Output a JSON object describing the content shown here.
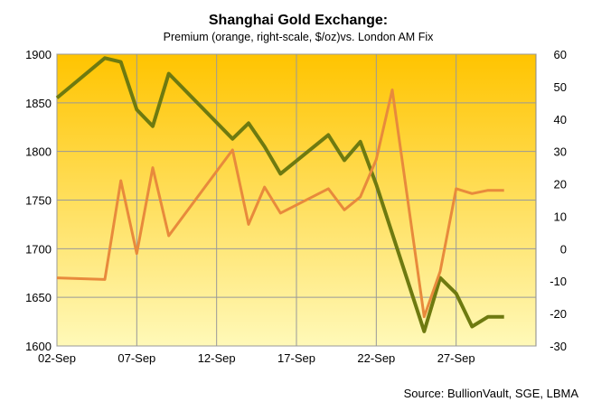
{
  "chart_data": {
    "type": "line",
    "title": "Shanghai Gold Exchange:",
    "subtitle": "Premium (orange, right-scale, $/oz)vs. London AM Fix",
    "source": "Source:  BullionVault, SGE, LBMA",
    "x_ticks": [
      "02-Sep",
      "07-Sep",
      "12-Sep",
      "17-Sep",
      "22-Sep",
      "27-Sep"
    ],
    "x_tick_days": [
      2,
      7,
      12,
      17,
      22,
      27
    ],
    "x_range_days": [
      2,
      32
    ],
    "y_left": {
      "range": [
        1600,
        1900
      ],
      "ticks": [
        1600,
        1650,
        1700,
        1750,
        1800,
        1850,
        1900
      ]
    },
    "y_right": {
      "range": [
        -30,
        60
      ],
      "ticks": [
        -30,
        -20,
        -10,
        0,
        10,
        20,
        30,
        40,
        50,
        60
      ]
    },
    "grid": true,
    "colors": {
      "gold_line": "#6e7a10",
      "premium_line": "#e88a3c",
      "plot_top": "#ffc400",
      "plot_bottom": "#fff9b8",
      "grid": "#999999"
    },
    "series": [
      {
        "axis": "left",
        "color": "#6e7a10",
        "x_days": [
          2,
          5,
          6,
          7,
          8,
          9,
          13,
          14,
          15,
          16,
          19,
          20,
          21,
          22,
          25,
          26,
          27,
          28,
          29,
          30
        ],
        "values": [
          1855,
          1896,
          1892,
          1843,
          1826,
          1880,
          1813,
          1829,
          1805,
          1777,
          1817,
          1791,
          1810,
          1766,
          1615,
          1670,
          1654,
          1620,
          1630,
          1630
        ]
      },
      {
        "axis": "right",
        "color": "#e88a3c",
        "x_days": [
          2,
          5,
          6,
          7,
          8,
          9,
          13,
          14,
          15,
          16,
          19,
          20,
          21,
          22,
          23,
          25,
          26,
          27,
          28,
          29,
          30
        ],
        "values": [
          -9,
          -9.5,
          21,
          -1.5,
          25,
          4,
          30.5,
          7.5,
          19,
          11,
          18.5,
          12,
          16,
          27.5,
          49,
          -21,
          -7,
          18.5,
          17,
          18,
          18
        ]
      }
    ]
  }
}
